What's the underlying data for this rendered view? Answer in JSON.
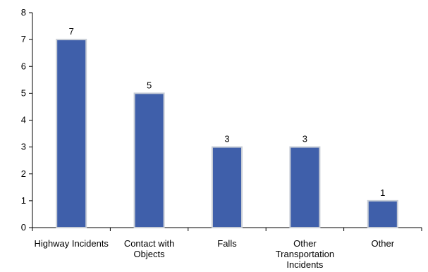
{
  "chart_data": {
    "type": "bar",
    "categories": [
      [
        "Highway Incidents"
      ],
      [
        "Contact with",
        "Objects"
      ],
      [
        "Falls"
      ],
      [
        "Other",
        "Transportation",
        "Incidents"
      ],
      [
        "Other"
      ]
    ],
    "values": [
      7,
      5,
      3,
      3,
      1
    ],
    "data_labels": [
      "7",
      "5",
      "3",
      "3",
      "1"
    ],
    "title": "",
    "xlabel": "",
    "ylabel": "",
    "ylim": [
      0,
      8
    ],
    "yticks": [
      "0",
      "1",
      "2",
      "3",
      "4",
      "5",
      "6",
      "7",
      "8"
    ],
    "grid": false,
    "legend": "none",
    "colors": {
      "bar_fill": "#3f5faa",
      "bar_stroke": "#c8cdd6",
      "axis": "#000000"
    }
  }
}
